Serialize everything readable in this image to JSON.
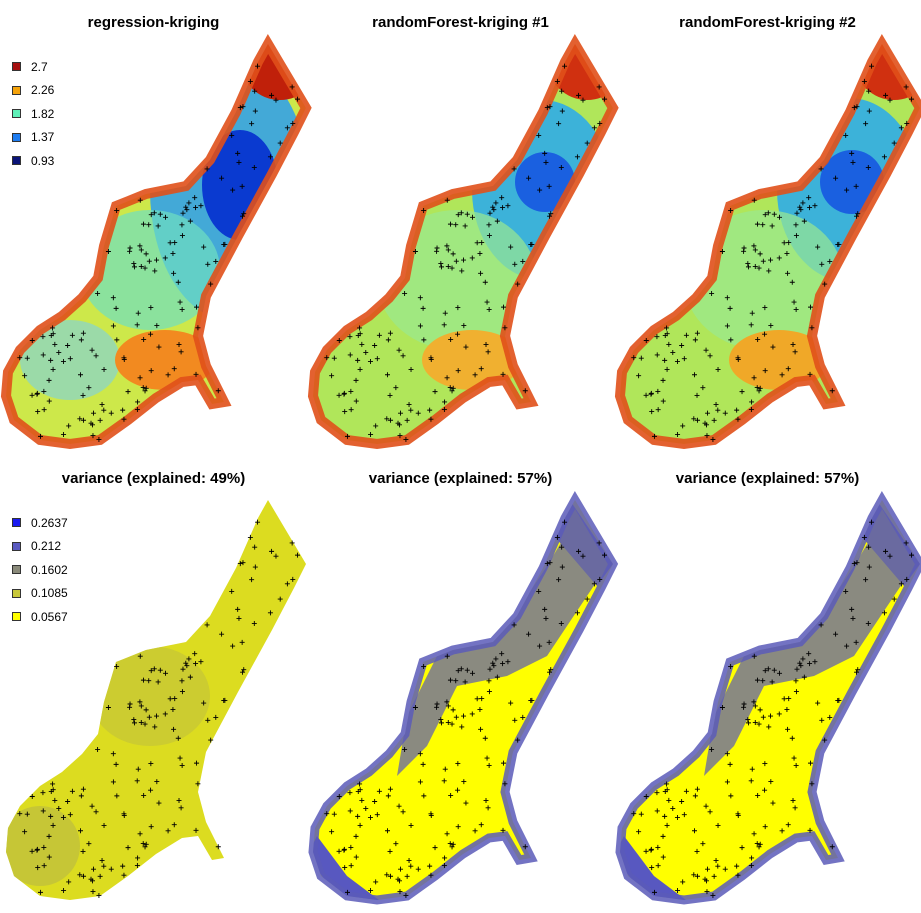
{
  "panels": [
    {
      "id": "p1",
      "title": "regression-kriging",
      "legend": [
        {
          "label": "2.7",
          "color": "#a50f0f"
        },
        {
          "label": "2.26",
          "color": "#f5a30a"
        },
        {
          "label": "1.82",
          "color": "#5ff0b8"
        },
        {
          "label": "1.37",
          "color": "#1e7cf0"
        },
        {
          "label": "0.93",
          "color": "#0a1478"
        }
      ]
    },
    {
      "id": "p2",
      "title": "randomForest-kriging #1",
      "legend": []
    },
    {
      "id": "p3",
      "title": "randomForest-kriging #2",
      "legend": []
    },
    {
      "id": "p4",
      "title": "variance (explained: 49%)",
      "legend": [
        {
          "label": "0.2637",
          "color": "#1a1af0"
        },
        {
          "label": "0.212",
          "color": "#5a5ac0"
        },
        {
          "label": "0.1602",
          "color": "#8a8a7a"
        },
        {
          "label": "0.1085",
          "color": "#c8c83a"
        },
        {
          "label": "0.0567",
          "color": "#ffff00"
        }
      ]
    },
    {
      "id": "p5",
      "title": "variance (explained: 57%)",
      "legend": []
    },
    {
      "id": "p6",
      "title": "variance (explained: 57%)",
      "legend": []
    }
  ],
  "chart_data": [
    {
      "type": "heatmap",
      "title": "regression-kriging",
      "legend_values": [
        2.7,
        2.26,
        1.82,
        1.37,
        0.93
      ],
      "legend_placement": "top-left"
    },
    {
      "type": "heatmap",
      "title": "randomForest-kriging #1"
    },
    {
      "type": "heatmap",
      "title": "randomForest-kriging #2"
    },
    {
      "type": "heatmap",
      "title": "variance (explained: 49%)",
      "legend_values": [
        0.2637,
        0.212,
        0.1602,
        0.1085,
        0.0567
      ],
      "legend_placement": "top-left"
    },
    {
      "type": "heatmap",
      "title": "variance (explained: 57%)"
    },
    {
      "type": "heatmap",
      "title": "variance (explained: 57%)"
    }
  ]
}
